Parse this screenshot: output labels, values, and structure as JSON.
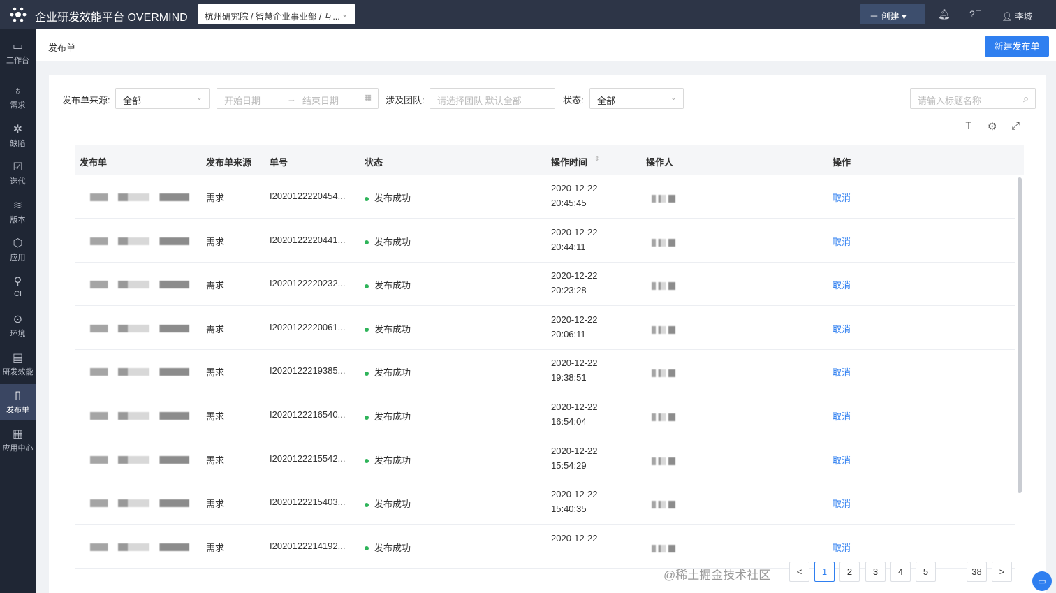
{
  "app": {
    "title": "企业研发效能平台 OVERMIND",
    "org_path": "杭州研究院 / 智慧企业事业部 / 互...",
    "create_label": "创建",
    "user": "李城"
  },
  "sidebar": {
    "items": [
      {
        "label": "工作台",
        "icon": "monitor-icon"
      },
      {
        "label": "需求",
        "icon": "bulb-icon"
      },
      {
        "label": "缺陷",
        "icon": "bug-icon"
      },
      {
        "label": "迭代",
        "icon": "calendar-icon"
      },
      {
        "label": "版本",
        "icon": "layers-icon"
      },
      {
        "label": "应用",
        "icon": "cube-icon"
      },
      {
        "label": "CI",
        "icon": "tree-icon"
      },
      {
        "label": "环境",
        "icon": "location-icon"
      },
      {
        "label": "研发效能",
        "icon": "chart-icon"
      },
      {
        "label": "发布单",
        "icon": "document-icon",
        "active": true
      },
      {
        "label": "应用中心",
        "icon": "grid-icon"
      }
    ]
  },
  "page": {
    "title": "发布单",
    "new_button": "新建发布单"
  },
  "filters": {
    "source_label": "发布单来源:",
    "source_value": "全部",
    "start_placeholder": "开始日期",
    "end_placeholder": "结束日期",
    "team_label": "涉及团队:",
    "team_placeholder": "请选择团队 默认全部",
    "status_label": "状态:",
    "status_value": "全部",
    "search_placeholder": "请输入标题名称"
  },
  "table": {
    "headers": [
      "发布单",
      "发布单来源",
      "单号",
      "状态",
      "操作时间",
      "操作人",
      "操作"
    ],
    "rows": [
      {
        "source": "需求",
        "id": "I2020122220454...",
        "status": "发布成功",
        "date": "2020-12-22",
        "time": "20:45:45",
        "action": "取消"
      },
      {
        "source": "需求",
        "id": "I2020122220441...",
        "status": "发布成功",
        "date": "2020-12-22",
        "time": "20:44:11",
        "action": "取消"
      },
      {
        "source": "需求",
        "id": "I2020122220232...",
        "status": "发布成功",
        "date": "2020-12-22",
        "time": "20:23:28",
        "action": "取消"
      },
      {
        "source": "需求",
        "id": "I2020122220061...",
        "status": "发布成功",
        "date": "2020-12-22",
        "time": "20:06:11",
        "action": "取消"
      },
      {
        "source": "需求",
        "id": "I2020122219385...",
        "status": "发布成功",
        "date": "2020-12-22",
        "time": "19:38:51",
        "action": "取消"
      },
      {
        "source": "需求",
        "id": "I2020122216540...",
        "status": "发布成功",
        "date": "2020-12-22",
        "time": "16:54:04",
        "action": "取消"
      },
      {
        "source": "需求",
        "id": "I2020122215542...",
        "status": "发布成功",
        "date": "2020-12-22",
        "time": "15:54:29",
        "action": "取消"
      },
      {
        "source": "需求",
        "id": "I2020122215403...",
        "status": "发布成功",
        "date": "2020-12-22",
        "time": "15:40:35",
        "action": "取消"
      },
      {
        "source": "需求",
        "id": "I2020122214192...",
        "status": "发布成功",
        "date": "2020-12-22",
        "time": "",
        "action": "取消"
      }
    ]
  },
  "pagination": {
    "prev": "<",
    "pages": [
      "1",
      "2",
      "3",
      "4",
      "5",
      "38"
    ],
    "next": ">",
    "current": "1"
  },
  "watermark": "@稀土掘金技术社区",
  "colors": {
    "accent": "#2f7ff0",
    "success": "#2fb45a",
    "topbar": "#2d3547",
    "sidebar": "#1f2634"
  }
}
